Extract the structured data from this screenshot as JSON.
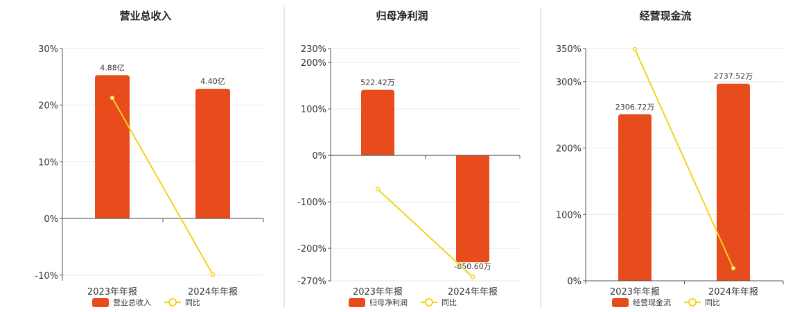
{
  "colors": {
    "bar": "#e84c1c",
    "line": "#f2d21b",
    "grid": "#e6e6e6",
    "axis": "#555555",
    "divider": "#cccccc"
  },
  "chart_data": [
    {
      "type": "bar",
      "title": "营业总收入",
      "categories": [
        "2023年年报",
        "2024年年报"
      ],
      "series": [
        {
          "name": "营业总收入",
          "type": "bar",
          "values": [
            25.3,
            22.9
          ],
          "labels": [
            "4.88亿",
            "4.40亿"
          ]
        },
        {
          "name": "同比",
          "type": "line",
          "values": [
            21.3,
            -9.9
          ]
        }
      ],
      "ylim": [
        -11,
        30
      ],
      "yticks": [
        30,
        20,
        10,
        0,
        -10
      ],
      "ytick_labels": [
        "30%",
        "20%",
        "10%",
        "0%",
        "-10%"
      ]
    },
    {
      "type": "bar",
      "title": "归母净利润",
      "categories": [
        "2023年年报",
        "2024年年报"
      ],
      "series": [
        {
          "name": "归母净利润",
          "type": "bar",
          "values": [
            141,
            -230
          ],
          "labels": [
            "522.42万",
            "-850.60万"
          ]
        },
        {
          "name": "同比",
          "type": "line",
          "values": [
            -73,
            -262
          ]
        }
      ],
      "ylim": [
        -270,
        230
      ],
      "yticks": [
        230,
        200,
        100,
        0,
        -100,
        -200,
        -270
      ],
      "ytick_labels": [
        "230%",
        "200%",
        "100%",
        "0%",
        "-100%",
        "-200%",
        "-270%"
      ]
    },
    {
      "type": "bar",
      "title": "经营现金流",
      "categories": [
        "2023年年报",
        "2024年年报"
      ],
      "series": [
        {
          "name": "经营现金流",
          "type": "bar",
          "values": [
            251,
            297
          ],
          "labels": [
            "2306.72万",
            "2737.52万"
          ]
        },
        {
          "name": "同比",
          "type": "line",
          "values": [
            349,
            19
          ]
        }
      ],
      "ylim": [
        0,
        350
      ],
      "yticks": [
        350,
        300,
        200,
        100,
        0
      ],
      "ytick_labels": [
        "350%",
        "300%",
        "200%",
        "100%",
        "0%"
      ]
    }
  ]
}
